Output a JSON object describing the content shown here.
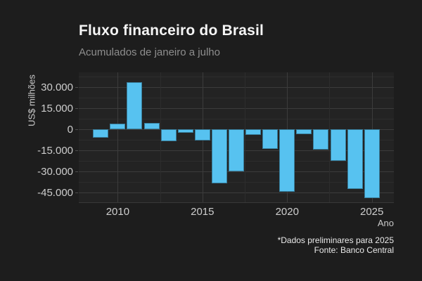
{
  "page": {
    "title": "Fluxo financeiro do Brasil",
    "subtitle": "Acumulados de janeiro a julho",
    "caption_line1": "*Dados preliminares para 2025",
    "caption_line2": "Fonte: Banco Central",
    "xlabel": "Ano",
    "ylabel": "US$ milhões"
  },
  "colors": {
    "page_bg": "#1d1d1d",
    "panel_bg": "#232323",
    "bar": "#57c2f0",
    "grid_major": "#3c3c3c",
    "grid_minor": "#2d2d2d",
    "title": "#f5f5f5",
    "subtitle": "#8e8e8e",
    "tick_text": "#cdcdcd"
  },
  "chart_data": {
    "type": "bar",
    "title": "Fluxo financeiro do Brasil",
    "subtitle": "Acumulados de janeiro a julho",
    "xlabel": "Ano",
    "ylabel": "US$ milhões",
    "caption": [
      "*Dados preliminares para 2025",
      "Fonte: Banco Central"
    ],
    "categories": [
      2009,
      2010,
      2011,
      2012,
      2013,
      2014,
      2015,
      2016,
      2017,
      2018,
      2019,
      2020,
      2021,
      2022,
      2023,
      2024,
      2025
    ],
    "values": [
      -6000,
      4000,
      33500,
      4500,
      -8500,
      -2500,
      -8000,
      -38500,
      -30000,
      -4000,
      -14000,
      -44500,
      -3500,
      -14500,
      -22500,
      -42500,
      -49000
    ],
    "unit": "US$ milhões",
    "ylim": [
      -51850,
      40650
    ],
    "x_domain": [
      2007.7,
      2026.3
    ],
    "y_major_ticks": [
      30000,
      15000,
      0,
      -15000,
      -30000,
      -45000
    ],
    "y_major_labels": [
      "30.000",
      "15.000",
      "0",
      "-15.000",
      "-30.000",
      "-45.000"
    ],
    "y_minor_ticks": [
      37500,
      22500,
      7500,
      -7500,
      -22500,
      -37500
    ],
    "x_major_ticks": [
      2010,
      2015,
      2020,
      2025
    ],
    "x_major_labels": [
      "2010",
      "2015",
      "2020",
      "2025"
    ],
    "x_minor_ticks": [
      2012.5,
      2017.5,
      2022.5
    ],
    "grid": true,
    "legend": "none",
    "bar_color": "#57c2f0"
  }
}
